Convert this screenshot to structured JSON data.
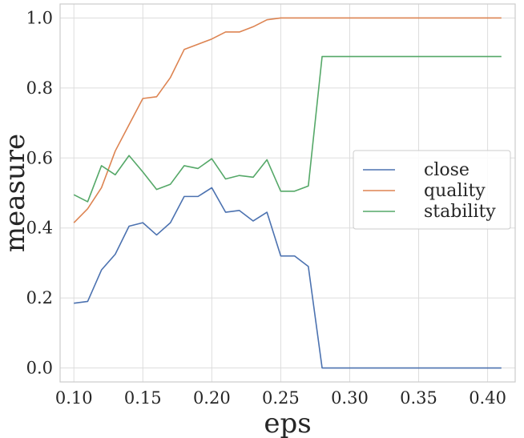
{
  "chart_data": {
    "type": "line",
    "xlabel": "eps",
    "ylabel": "measure",
    "xlim": [
      0.09,
      0.42
    ],
    "ylim": [
      -0.04,
      1.04
    ],
    "xticks": [
      0.1,
      0.15,
      0.2,
      0.25,
      0.3,
      0.35,
      0.4
    ],
    "xtick_labels": [
      "0.10",
      "0.15",
      "0.20",
      "0.25",
      "0.30",
      "0.35",
      "0.40"
    ],
    "yticks": [
      0.0,
      0.2,
      0.4,
      0.6,
      0.8,
      1.0
    ],
    "ytick_labels": [
      "0.0",
      "0.2",
      "0.4",
      "0.6",
      "0.8",
      "1.0"
    ],
    "grid": true,
    "legend_position": "center-right",
    "x": [
      0.1,
      0.11,
      0.12,
      0.13,
      0.14,
      0.15,
      0.16,
      0.17,
      0.18,
      0.19,
      0.2,
      0.21,
      0.22,
      0.23,
      0.24,
      0.25,
      0.26,
      0.27,
      0.28,
      0.29,
      0.3,
      0.31,
      0.32,
      0.33,
      0.34,
      0.35,
      0.36,
      0.37,
      0.38,
      0.39,
      0.4,
      0.41
    ],
    "series": [
      {
        "name": "close",
        "color": "#4c72b0",
        "values": [
          0.185,
          0.19,
          0.28,
          0.325,
          0.405,
          0.415,
          0.38,
          0.415,
          0.49,
          0.49,
          0.515,
          0.445,
          0.45,
          0.42,
          0.445,
          0.32,
          0.32,
          0.29,
          0.0,
          0.0,
          0.0,
          0.0,
          0.0,
          0.0,
          0.0,
          0.0,
          0.0,
          0.0,
          0.0,
          0.0,
          0.0,
          0.0
        ]
      },
      {
        "name": "quality",
        "color": "#dd8452",
        "values": [
          0.415,
          0.455,
          0.515,
          0.62,
          0.695,
          0.77,
          0.775,
          0.83,
          0.91,
          0.925,
          0.94,
          0.96,
          0.96,
          0.975,
          0.995,
          1.0,
          1.0,
          1.0,
          1.0,
          1.0,
          1.0,
          1.0,
          1.0,
          1.0,
          1.0,
          1.0,
          1.0,
          1.0,
          1.0,
          1.0,
          1.0,
          1.0
        ]
      },
      {
        "name": "stability",
        "color": "#55a868",
        "values": [
          0.495,
          0.475,
          0.578,
          0.552,
          0.607,
          0.56,
          0.51,
          0.525,
          0.578,
          0.57,
          0.598,
          0.54,
          0.55,
          0.545,
          0.595,
          0.505,
          0.505,
          0.52,
          0.89,
          0.89,
          0.89,
          0.89,
          0.89,
          0.89,
          0.89,
          0.89,
          0.89,
          0.89,
          0.89,
          0.89,
          0.89,
          0.89
        ]
      }
    ]
  }
}
